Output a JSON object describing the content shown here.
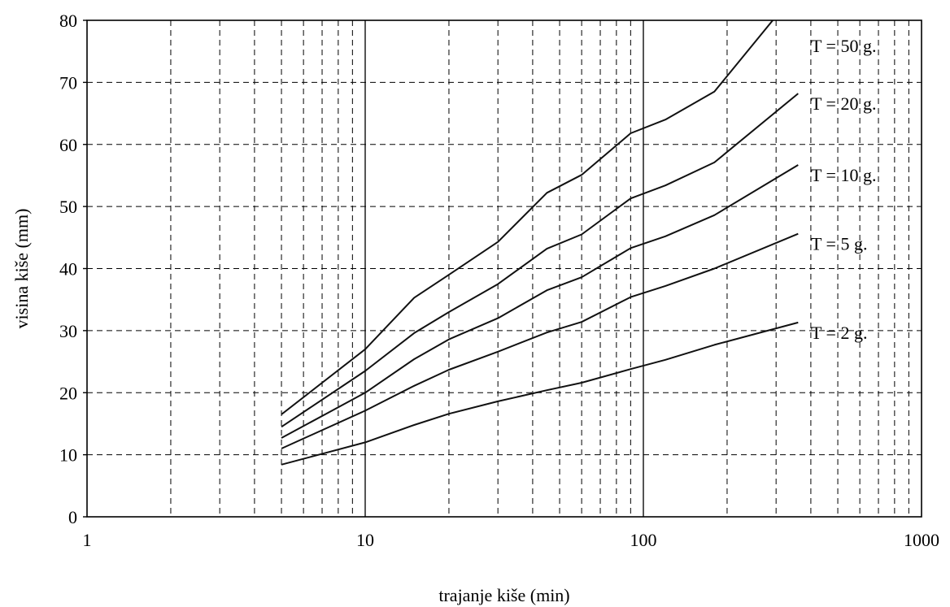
{
  "chart_data": {
    "type": "line",
    "xscale": "log",
    "xlabel": "trajanje kiše (min)",
    "ylabel": "visina kiše (mm)",
    "xlim": [
      1,
      1000
    ],
    "ylim": [
      0,
      80
    ],
    "grid": true,
    "x_ticks": [
      1,
      10,
      100,
      1000
    ],
    "x_tick_labels": [
      "1",
      "10",
      "100",
      "1000"
    ],
    "y_ticks": [
      0,
      10,
      20,
      30,
      40,
      50,
      60,
      70,
      80
    ],
    "y_tick_labels": [
      "0",
      "10",
      "20",
      "30",
      "40",
      "50",
      "60",
      "70",
      "80"
    ],
    "x": [
      5,
      10,
      15,
      20,
      30,
      45,
      60,
      90,
      120,
      180,
      360
    ],
    "series": [
      {
        "name": "T = 50 g.",
        "values": [
          16.5,
          27.0,
          35.3,
          39.0,
          44.3,
          52.2,
          55.1,
          61.8,
          64.0,
          68.5,
          85.0
        ]
      },
      {
        "name": "T = 20 g.",
        "values": [
          14.5,
          23.5,
          29.6,
          33.0,
          37.5,
          43.2,
          45.5,
          51.3,
          53.4,
          57.1,
          68.2
        ]
      },
      {
        "name": "T = 10 g.",
        "values": [
          12.7,
          20.0,
          25.4,
          28.6,
          32.0,
          36.5,
          38.6,
          43.3,
          45.2,
          48.6,
          56.7
        ]
      },
      {
        "name": "T = 5 g.",
        "values": [
          11.0,
          17.1,
          21.1,
          23.7,
          26.6,
          29.7,
          31.4,
          35.4,
          37.2,
          40.0,
          45.6
        ]
      },
      {
        "name": "T = 2 g.",
        "values": [
          8.4,
          12.0,
          14.8,
          16.6,
          18.6,
          20.4,
          21.6,
          23.8,
          25.3,
          27.7,
          31.3
        ]
      }
    ]
  }
}
